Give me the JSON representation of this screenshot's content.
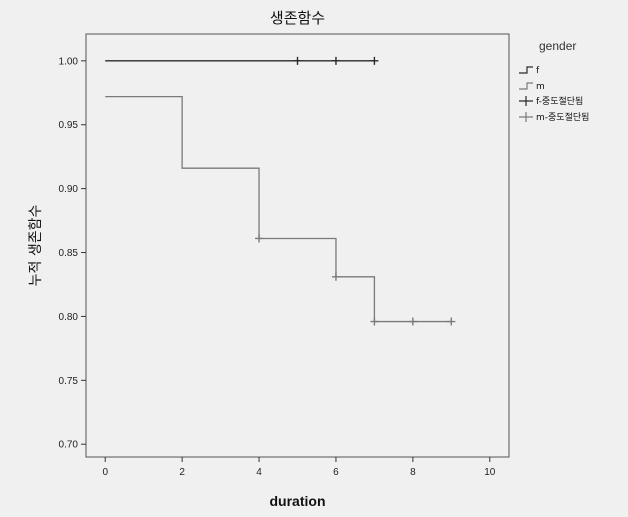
{
  "chart_data": {
    "type": "line",
    "title": "생존함수",
    "xlabel": "duration",
    "ylabel": "누적 생존함수",
    "xlim": [
      -0.5,
      10.5
    ],
    "ylim": [
      0.69,
      1.021
    ],
    "x_ticks": [
      0,
      2,
      4,
      6,
      8,
      10
    ],
    "y_ticks": [
      0.7,
      0.75,
      0.8,
      0.85,
      0.9,
      0.95,
      1.0
    ],
    "grid": false,
    "legend": {
      "title": "gender",
      "placement": "right",
      "entries": [
        "f",
        "m",
        "f-중도절단됨",
        "m-중도절단됨"
      ]
    },
    "series": [
      {
        "name": "f",
        "color": "#2a2a2a",
        "steps": [
          [
            0,
            1.0
          ],
          [
            7,
            1.0
          ]
        ],
        "censored": [
          [
            5,
            1.0
          ],
          [
            6,
            1.0
          ],
          [
            7,
            1.0
          ]
        ]
      },
      {
        "name": "m",
        "color": "#7a7a7a",
        "steps": [
          [
            0,
            0.972
          ],
          [
            2,
            0.916
          ],
          [
            4,
            0.861
          ],
          [
            6,
            0.831
          ],
          [
            7,
            0.796
          ],
          [
            9,
            0.796
          ]
        ],
        "censored": [
          [
            4,
            0.861
          ],
          [
            6,
            0.831
          ],
          [
            7,
            0.796
          ],
          [
            8,
            0.796
          ],
          [
            9,
            0.796
          ]
        ]
      }
    ]
  }
}
